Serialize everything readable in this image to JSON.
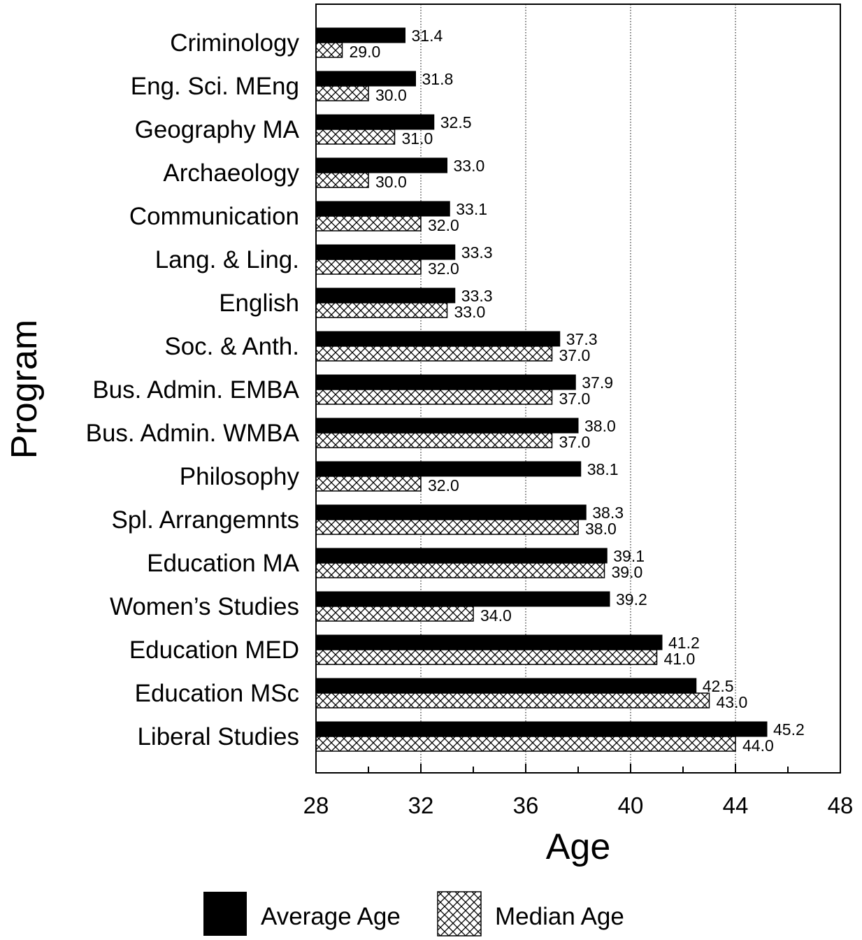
{
  "chart_data": {
    "type": "bar",
    "orientation": "horizontal",
    "title": "",
    "xlabel": "Age",
    "ylabel": "Program",
    "xlim": [
      28,
      48
    ],
    "xticks": [
      28,
      32,
      36,
      40,
      44,
      48
    ],
    "grid": "vertical dotted",
    "legend_position": "bottom",
    "categories": [
      "Criminology",
      "Eng. Sci. MEng",
      "Geography MA",
      "Archaeology",
      "Communication",
      "Lang. & Ling.",
      "English",
      "Soc. & Anth.",
      "Bus. Admin. EMBA",
      "Bus. Admin. WMBA",
      "Philosophy",
      "Spl. Arrangemnts",
      "Education MA",
      "Women’s Studies",
      "Education MED",
      "Education MSc",
      "Liberal Studies"
    ],
    "series": [
      {
        "name": "Average Age",
        "color": "#000000",
        "pattern": "solid",
        "values": [
          31.4,
          31.8,
          32.5,
          33.0,
          33.1,
          33.3,
          33.3,
          37.3,
          37.9,
          38.0,
          38.1,
          38.3,
          39.1,
          39.2,
          41.2,
          42.5,
          45.2
        ],
        "labels": [
          "31.4",
          "31.8",
          "32.5",
          "33.0",
          "33.1",
          "33.3",
          "33.3",
          "37.3",
          "37.9",
          "38.0",
          "38.1",
          "38.3",
          "39.1",
          "39.2",
          "41.2",
          "42.5",
          "45.2"
        ]
      },
      {
        "name": "Median Age",
        "color": "#000000",
        "pattern": "crosshatch",
        "values": [
          29.0,
          30.0,
          31.0,
          30.0,
          32.0,
          32.0,
          33.0,
          37.0,
          37.0,
          37.0,
          32.0,
          38.0,
          39.0,
          34.0,
          41.0,
          43.0,
          44.0
        ],
        "labels": [
          "29.0",
          "30.0",
          "31.0",
          "30.0",
          "32.0",
          "32.0",
          "33.0",
          "37.0",
          "37.0",
          "37.0",
          "32.0",
          "38.0",
          "39.0",
          "34.0",
          "41.0",
          "43.0",
          "44.0"
        ]
      }
    ]
  }
}
